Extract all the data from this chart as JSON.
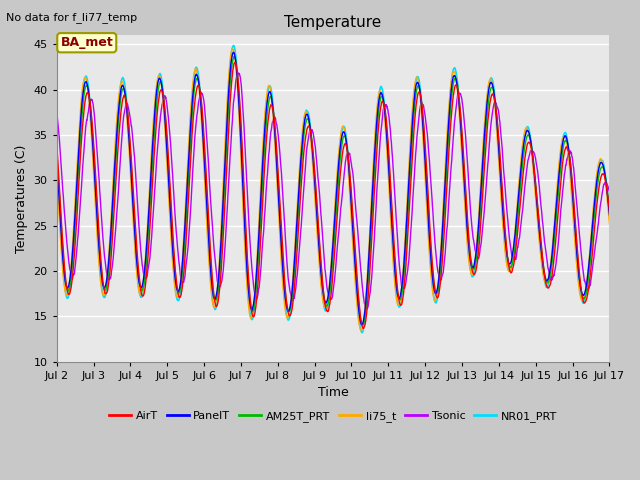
{
  "title": "Temperature",
  "ylabel": "Temperatures (C)",
  "xlabel": "Time",
  "annotation": "No data for f_li77_temp",
  "legend_label": "BA_met",
  "ylim": [
    10,
    46
  ],
  "yticks": [
    10,
    15,
    20,
    25,
    30,
    35,
    40,
    45
  ],
  "x_start_day": 2,
  "x_end_day": 17,
  "x_tick_days": [
    2,
    3,
    4,
    5,
    6,
    7,
    8,
    9,
    10,
    11,
    12,
    13,
    14,
    15,
    16,
    17
  ],
  "series": [
    {
      "name": "AirT",
      "color": "#ff0000",
      "lw": 1.0
    },
    {
      "name": "PanelT",
      "color": "#0000ff",
      "lw": 1.0
    },
    {
      "name": "AM25T_PRT",
      "color": "#00bb00",
      "lw": 1.0
    },
    {
      "name": "li75_t",
      "color": "#ffaa00",
      "lw": 1.0
    },
    {
      "name": "Tsonic",
      "color": "#bb00ff",
      "lw": 1.0
    },
    {
      "name": "NR01_PRT",
      "color": "#00ddff",
      "lw": 1.2
    }
  ],
  "fig_bg_color": "#c8c8c8",
  "plot_bg_color": "#e8e8e8",
  "grid_color": "#ffffff",
  "peak_amplitudes": [
    41,
    41,
    40.5,
    41.5,
    42,
    45,
    38.5,
    37,
    35,
    41,
    41,
    42,
    40.5,
    34,
    35,
    31
  ],
  "trough_temps": [
    17,
    17,
    17,
    17,
    16,
    15,
    13.5,
    17,
    12,
    16,
    15.5,
    19,
    20,
    19,
    16,
    17
  ]
}
